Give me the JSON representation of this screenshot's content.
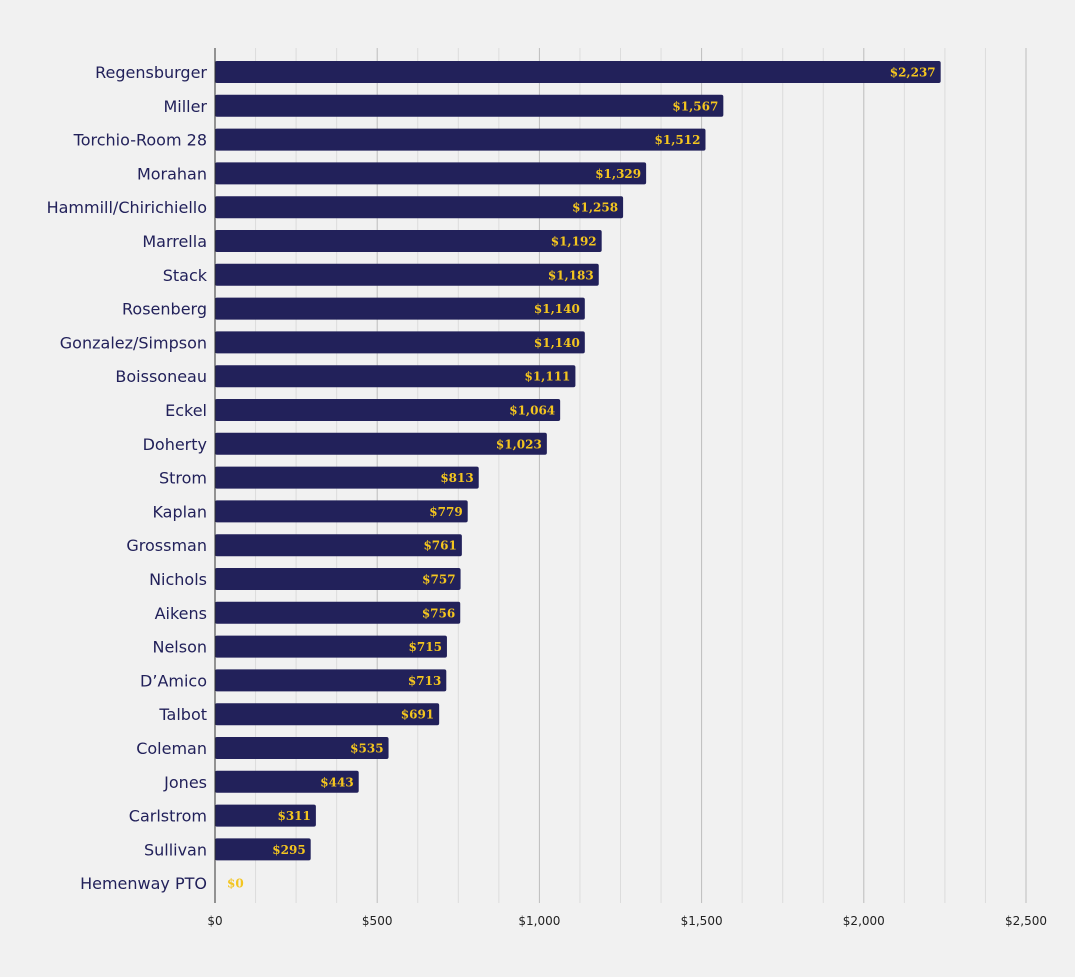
{
  "chart_data": {
    "type": "bar",
    "orientation": "horizontal",
    "title": "",
    "xlabel": "",
    "ylabel": "",
    "categories": [
      "Regensburger",
      "Miller",
      "Torchio-Room 28",
      "Morahan",
      "Hammill/Chirichiello",
      "Marrella",
      "Stack",
      "Rosenberg",
      "Gonzalez/Simpson",
      "Boissoneau",
      "Eckel",
      "Doherty",
      "Strom",
      "Kaplan",
      "Grossman",
      "Nichols",
      "Aikens",
      "Nelson",
      "D’Amico",
      "Talbot",
      "Coleman",
      "Jones",
      "Carlstrom",
      "Sullivan",
      "Hemenway PTO"
    ],
    "values": [
      2237,
      1567,
      1512,
      1329,
      1258,
      1192,
      1183,
      1140,
      1140,
      1111,
      1064,
      1023,
      813,
      779,
      761,
      757,
      756,
      715,
      713,
      691,
      535,
      443,
      311,
      295,
      0
    ],
    "value_labels": [
      "$2,237",
      "$1,567",
      "$1,512",
      "$1,329",
      "$1,258",
      "$1,192",
      "$1,183",
      "$1,140",
      "$1,140",
      "$1,111",
      "$1,064",
      "$1,023",
      "$813",
      "$779",
      "$761",
      "$757",
      "$756",
      "$715",
      "$713",
      "$691",
      "$535",
      "$443",
      "$311",
      "$295",
      "$0"
    ],
    "xlim": [
      0,
      2500
    ],
    "x_ticks": [
      0,
      500,
      1000,
      1500,
      2000,
      2500
    ],
    "x_tick_labels": [
      "$0",
      "$500",
      "$1,000",
      "$1,500",
      "$2,000",
      "$2,500"
    ],
    "minor_grid_step": 125,
    "grid": true,
    "legend": "none",
    "colors": {
      "bar": "#22215a",
      "value_label": "#f3c51f",
      "category_label": "#22215a",
      "major_grid": "#bdbdbd",
      "minor_grid": "#dcdcdc",
      "axis": "#333333",
      "background": "#f1f1f1"
    }
  }
}
